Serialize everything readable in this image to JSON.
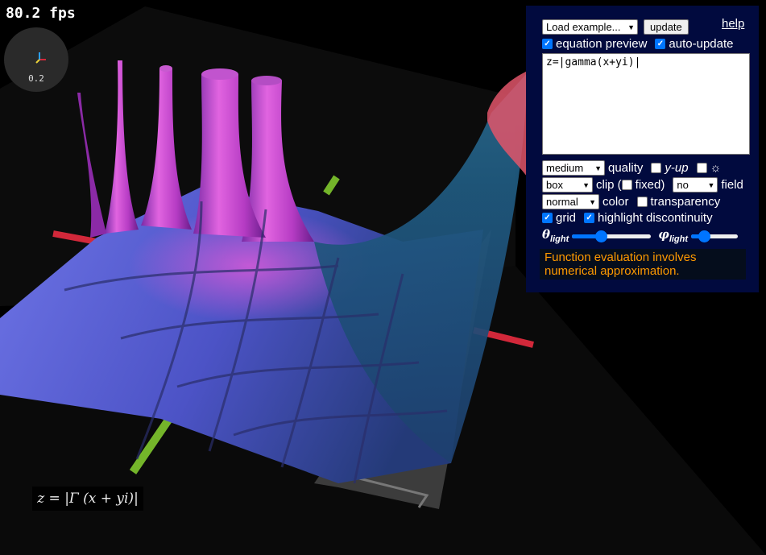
{
  "hud": {
    "fps": "80.2 fps",
    "zoom_label": "0.2",
    "equation_render": "z = |Γ (x + yi)|"
  },
  "panel": {
    "example_select": "Load example...",
    "update_button": "update",
    "help_link": "help",
    "equation_preview": {
      "label": "equation preview",
      "checked": true
    },
    "auto_update": {
      "label": "auto-update",
      "checked": true
    },
    "equation_text": "z=|gamma(x+yi)|",
    "quality": {
      "value": "medium",
      "label": "quality"
    },
    "y_up": {
      "label": "y-up",
      "checked": false
    },
    "light_toggle": {
      "icon": "sun-icon",
      "glyph": "☼",
      "checked": false
    },
    "clip": {
      "value": "box",
      "label": "clip (",
      "fixed_label": "fixed)",
      "fixed_checked": false
    },
    "field": {
      "value": "no",
      "label": "field"
    },
    "color": {
      "value": "normal",
      "label": "color"
    },
    "transparency": {
      "label": "transparency",
      "checked": false
    },
    "grid": {
      "label": "grid",
      "checked": true
    },
    "highlight_discontinuity": {
      "label": "highlight discontinuity",
      "checked": true
    },
    "theta_light": {
      "symbol": "θ",
      "sub": "light",
      "value": 0.35
    },
    "phi_light": {
      "symbol": "φ",
      "sub": "light",
      "value": 0.2
    },
    "message": "Function evaluation involves numerical approximation."
  },
  "colors": {
    "panel_bg": "#010a3e",
    "accent": "#0075ff",
    "warning": "#ff9a00",
    "surface_blue": "#5a5ad6",
    "surface_magenta": "#d94fd8",
    "axis_x": "#d2283a",
    "axis_y": "#74b52a"
  }
}
